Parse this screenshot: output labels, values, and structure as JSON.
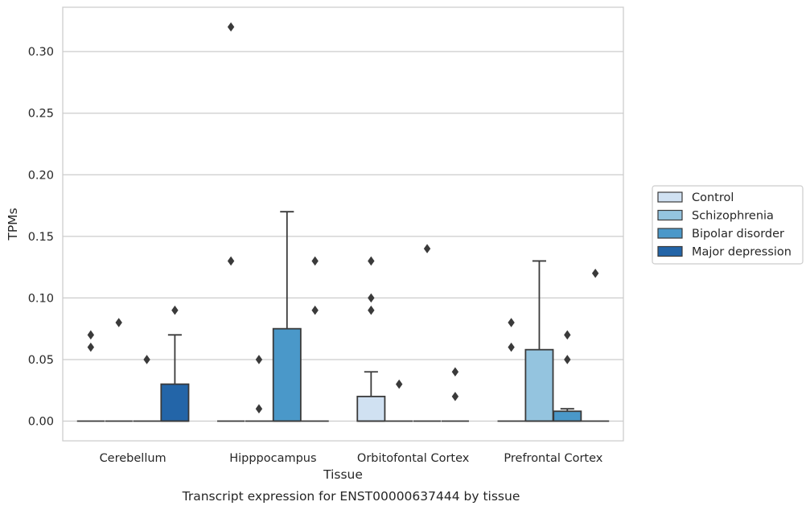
{
  "chart_data": {
    "type": "box",
    "title": "",
    "caption": "Transcript expression for ENST00000637444 by tissue",
    "xlabel": "Tissue",
    "ylabel": "TPMs",
    "ylim": [
      -0.016,
      0.336
    ],
    "yticks": [
      0.0,
      0.05,
      0.1,
      0.15,
      0.2,
      0.25,
      0.3
    ],
    "ytick_labels": [
      "0.00",
      "0.05",
      "0.10",
      "0.15",
      "0.20",
      "0.25",
      "0.30"
    ],
    "grid": "horizontal",
    "legend_position": "right",
    "categories": [
      "Cerebellum",
      "Hipppocampus",
      "Orbitofontal Cortex",
      "Prefrontal Cortex"
    ],
    "series": [
      {
        "name": "Control",
        "color": "#d0e1f2",
        "boxes": [
          {
            "q1": 0,
            "median": 0,
            "q3": 0,
            "whisker_low": 0,
            "whisker_high": 0,
            "outliers": [
              0.06,
              0.07
            ]
          },
          {
            "q1": 0,
            "median": 0,
            "q3": 0,
            "whisker_low": 0,
            "whisker_high": 0,
            "outliers": [
              0.13,
              0.32
            ]
          },
          {
            "q1": 0,
            "median": 0,
            "q3": 0.02,
            "whisker_low": 0,
            "whisker_high": 0.04,
            "outliers": [
              0.09,
              0.1,
              0.13
            ]
          },
          {
            "q1": 0,
            "median": 0,
            "q3": 0,
            "whisker_low": 0,
            "whisker_high": 0,
            "outliers": [
              0.06,
              0.08
            ]
          }
        ]
      },
      {
        "name": "Schizophrenia",
        "color": "#94c4df",
        "boxes": [
          {
            "q1": 0,
            "median": 0,
            "q3": 0,
            "whisker_low": 0,
            "whisker_high": 0,
            "outliers": [
              0.08
            ]
          },
          {
            "q1": 0,
            "median": 0,
            "q3": 0,
            "whisker_low": 0,
            "whisker_high": 0,
            "outliers": [
              0.01,
              0.05
            ]
          },
          {
            "q1": 0,
            "median": 0,
            "q3": 0,
            "whisker_low": 0,
            "whisker_high": 0,
            "outliers": [
              0.03
            ]
          },
          {
            "q1": 0,
            "median": 0,
            "q3": 0.058,
            "whisker_low": 0,
            "whisker_high": 0.13,
            "outliers": []
          }
        ]
      },
      {
        "name": "Bipolar disorder",
        "color": "#4a98c9",
        "boxes": [
          {
            "q1": 0,
            "median": 0,
            "q3": 0,
            "whisker_low": 0,
            "whisker_high": 0,
            "outliers": [
              0.05
            ]
          },
          {
            "q1": 0,
            "median": 0,
            "q3": 0.075,
            "whisker_low": 0,
            "whisker_high": 0.17,
            "outliers": []
          },
          {
            "q1": 0,
            "median": 0,
            "q3": 0,
            "whisker_low": 0,
            "whisker_high": 0,
            "outliers": [
              0.14
            ]
          },
          {
            "q1": 0,
            "median": 0,
            "q3": 0.008,
            "whisker_low": 0,
            "whisker_high": 0.01,
            "outliers": [
              0.05,
              0.07
            ]
          }
        ]
      },
      {
        "name": "Major depression",
        "color": "#2365a8",
        "boxes": [
          {
            "q1": 0,
            "median": 0,
            "q3": 0.03,
            "whisker_low": 0,
            "whisker_high": 0.07,
            "outliers": [
              0.09
            ]
          },
          {
            "q1": 0,
            "median": 0,
            "q3": 0,
            "whisker_low": 0,
            "whisker_high": 0,
            "outliers": [
              0.09,
              0.13
            ]
          },
          {
            "q1": 0,
            "median": 0,
            "q3": 0,
            "whisker_low": 0,
            "whisker_high": 0,
            "outliers": [
              0.02,
              0.04
            ]
          },
          {
            "q1": 0,
            "median": 0,
            "q3": 0,
            "whisker_low": 0,
            "whisker_high": 0,
            "outliers": [
              0.12
            ]
          }
        ]
      }
    ]
  }
}
